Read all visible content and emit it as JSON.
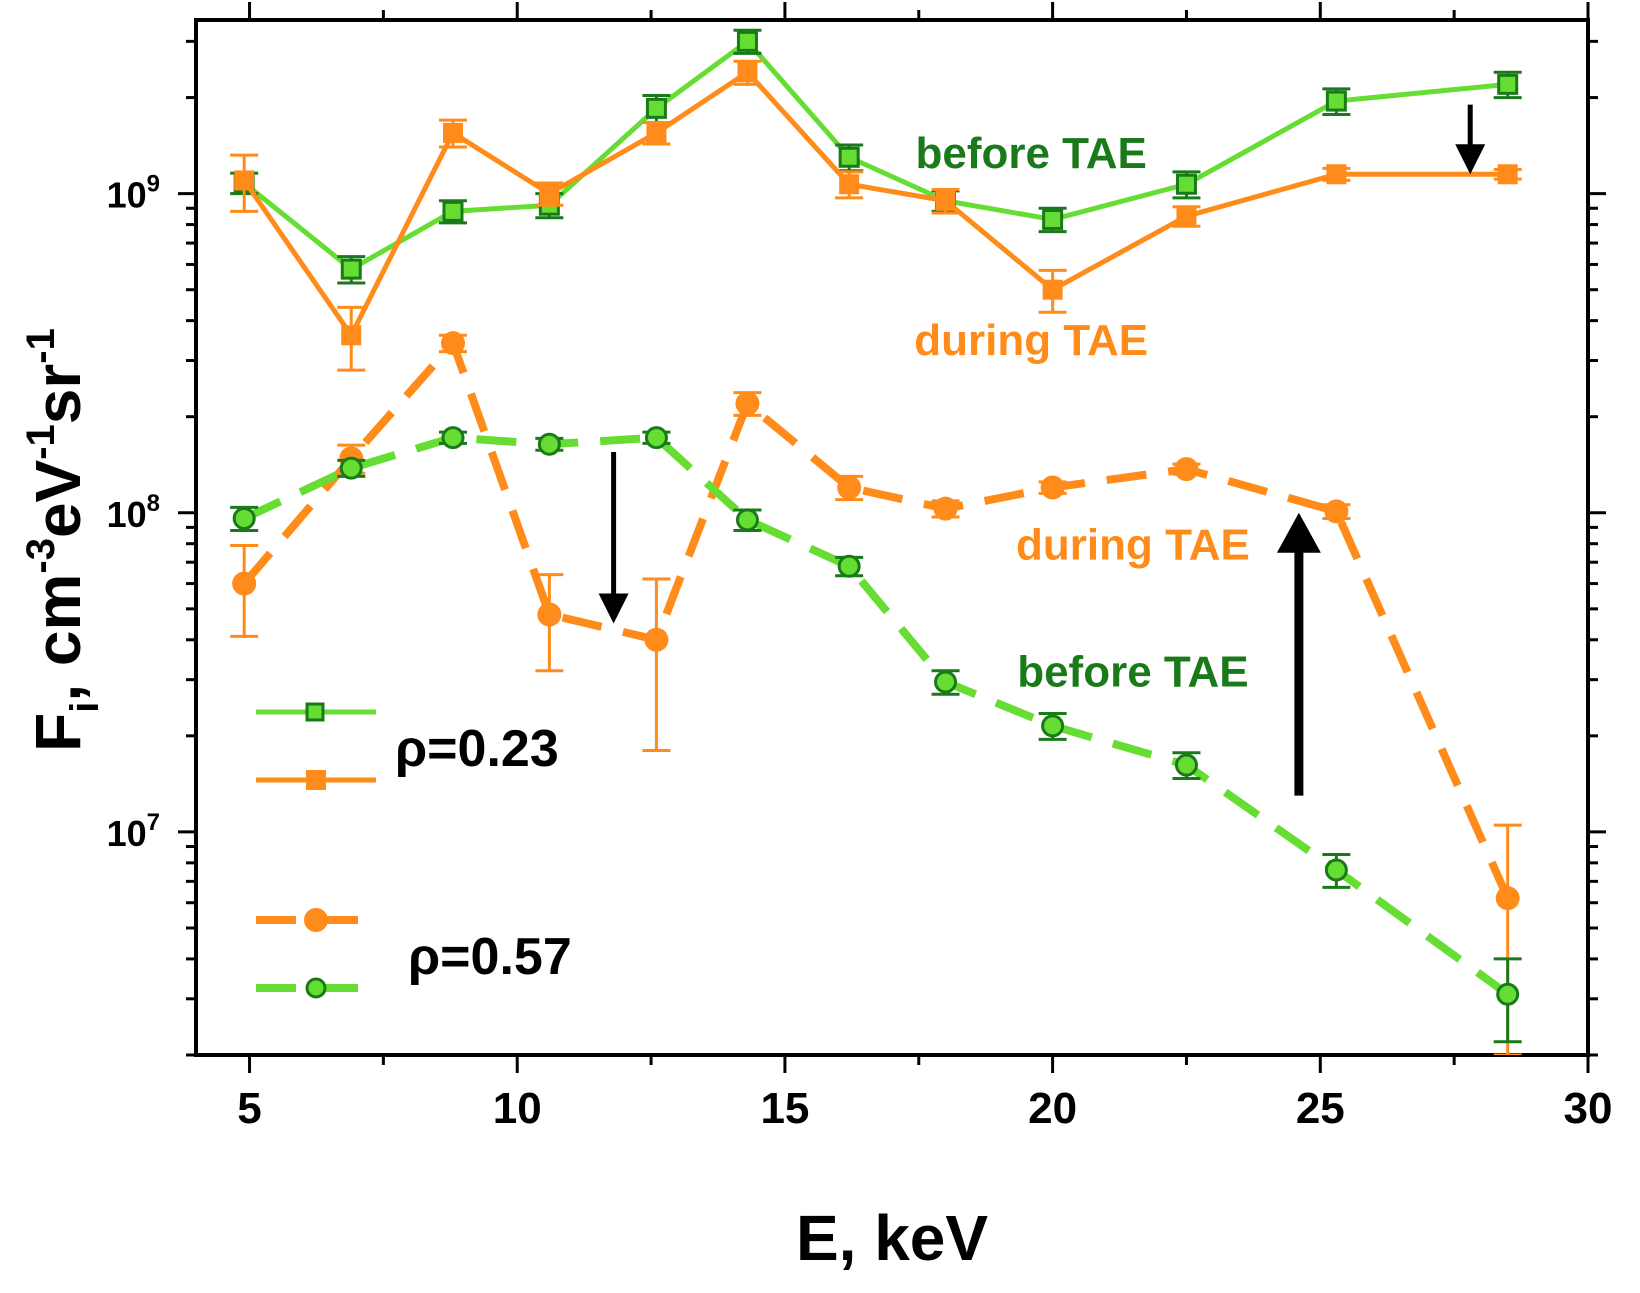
{
  "chart_data": {
    "type": "line",
    "xlabel": "E, keV",
    "ylabel": {
      "base": "F",
      "sub": "i",
      "units": ", cm",
      "exp1": "-3",
      "mid": "eV",
      "exp2": "-1",
      "mid2": "sr",
      "exp3": "-1"
    },
    "xlim": [
      4,
      30
    ],
    "ylim": [
      2000000.0,
      3500000000.0
    ],
    "yscale": "log",
    "x_ticks": [
      5,
      10,
      15,
      20,
      25,
      30
    ],
    "y_tick_labels": [
      {
        "value": 1000000000.0,
        "mant": "10",
        "exp": "9"
      },
      {
        "value": 100000000.0,
        "mant": "10",
        "exp": "8"
      },
      {
        "value": 10000000.0,
        "mant": "10",
        "exp": "7"
      }
    ],
    "colors": {
      "green": "#66dd33",
      "green_dark": "#1a7a1a",
      "orange": "#ff8c1a",
      "arrow": "#000000"
    },
    "series": [
      {
        "name": "rho023-before",
        "group": "ρ=0.23",
        "color": "green",
        "marker": "square",
        "dashed": false,
        "x": [
          4.9,
          6.9,
          8.8,
          10.6,
          12.6,
          14.3,
          16.2,
          18.0,
          20.0,
          22.5,
          25.3,
          28.5
        ],
        "y": [
          1080000000.0,
          580000000.0,
          880000000.0,
          920000000.0,
          1850000000.0,
          3000000000.0,
          1300000000.0,
          950000000.0,
          830000000.0,
          1070000000.0,
          1950000000.0,
          2200000000.0
        ],
        "err": [
          80000000.0,
          55000000.0,
          70000000.0,
          80000000.0,
          180000000.0,
          250000000.0,
          120000000.0,
          70000000.0,
          70000000.0,
          100000000.0,
          180000000.0,
          200000000.0
        ]
      },
      {
        "name": "rho023-during",
        "group": "ρ=0.23",
        "color": "orange",
        "marker": "square",
        "dashed": false,
        "x": [
          4.9,
          6.9,
          8.8,
          10.6,
          12.6,
          14.3,
          16.2,
          18.0,
          20.0,
          22.5,
          25.3,
          28.5
        ],
        "y": [
          1100000000.0,
          360000000.0,
          1550000000.0,
          1000000000.0,
          1550000000.0,
          2400000000.0,
          1070000000.0,
          950000000.0,
          500000000.0,
          850000000.0,
          1150000000.0,
          1150000000.0
        ],
        "err": [
          220000000.0,
          80000000.0,
          150000000.0,
          80000000.0,
          120000000.0,
          200000000.0,
          100000000.0,
          80000000.0,
          75000000.0,
          60000000.0,
          50000000.0,
          40000000.0
        ]
      },
      {
        "name": "rho057-during",
        "group": "ρ=0.57",
        "color": "orange",
        "marker": "circle",
        "dashed": true,
        "x": [
          4.9,
          6.9,
          8.8,
          10.6,
          12.6,
          14.3,
          16.2,
          18.0,
          20.0,
          22.5,
          25.3,
          28.5
        ],
        "y": [
          60000000.0,
          148000000.0,
          340000000.0,
          48000000.0,
          40000000.0,
          220000000.0,
          120000000.0,
          103000000.0,
          120000000.0,
          137000000.0,
          101000000.0,
          6200000.0
        ],
        "err": [
          19000000.0,
          15000000.0,
          20000000.0,
          16000000.0,
          22000000.0,
          18000000.0,
          10000000.0,
          6000000.0,
          5000000.0,
          5000000.0,
          5000000.0,
          4300000.0
        ]
      },
      {
        "name": "rho057-before",
        "group": "ρ=0.57",
        "color": "green",
        "marker": "circle",
        "dashed": true,
        "x": [
          4.9,
          6.9,
          8.8,
          10.6,
          12.6,
          14.3,
          16.2,
          18.0,
          20.0,
          22.5,
          25.3,
          28.5
        ],
        "y": [
          96000000.0,
          138000000.0,
          172000000.0,
          164000000.0,
          172000000.0,
          95000000.0,
          68000000.0,
          29500000.0,
          21500000.0,
          16200000.0,
          7600000.0,
          3100000.0
        ],
        "err": [
          8000000.0,
          8000000.0,
          7000000.0,
          7000000.0,
          7000000.0,
          7000000.0,
          4500000.0,
          2500000.0,
          2000000.0,
          1500000.0,
          900000.0,
          900000.0
        ]
      }
    ],
    "annotations": [
      {
        "name": "label-before-top",
        "text": "before TAE",
        "color": "green_dark",
        "x": 19.6,
        "y": 1350000000.0
      },
      {
        "name": "label-during-top",
        "text": "during TAE",
        "color": "orange",
        "x": 19.6,
        "y": 350000000.0
      },
      {
        "name": "label-during-bottom",
        "text": "during TAE",
        "color": "orange",
        "x": 21.5,
        "y": 80000000.0
      },
      {
        "name": "label-before-bottom",
        "text": "before TAE",
        "color": "green_dark",
        "x": 21.5,
        "y": 32000000.0
      }
    ],
    "arrows": [
      {
        "name": "arrow-down-right",
        "x": 27.8,
        "y_from": 1900000000.0,
        "y_to": 1150000000.0,
        "heavy": false
      },
      {
        "name": "arrow-down-middle",
        "x": 11.8,
        "y_from": 155000000.0,
        "y_to": 45000000.0,
        "heavy": false
      },
      {
        "name": "arrow-up",
        "x": 24.6,
        "y_from": 13000000.0,
        "y_to": 100000000.0,
        "heavy": true
      }
    ],
    "legend": [
      {
        "name": "legend-rho023",
        "label": "ρ=0.23",
        "entries": [
          "rho023-before",
          "rho023-during"
        ]
      },
      {
        "name": "legend-rho057",
        "label": "ρ=0.57",
        "entries": [
          "rho057-during",
          "rho057-before"
        ]
      }
    ]
  }
}
